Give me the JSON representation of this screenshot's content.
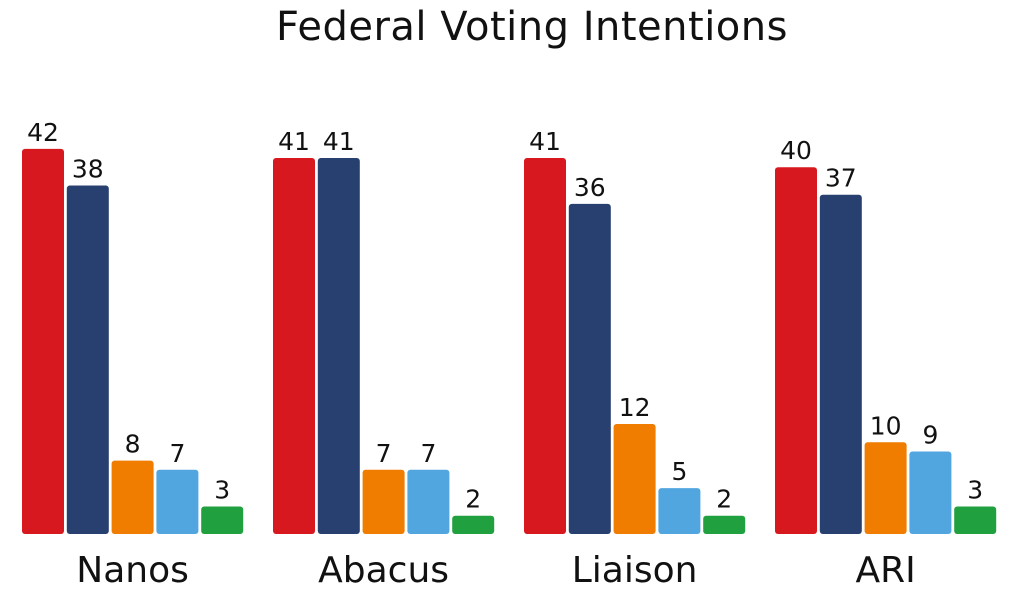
{
  "chart_data": {
    "type": "bar",
    "title": "Federal Voting Intentions",
    "categories": [
      "Nanos",
      "Abacus",
      "Liaison",
      "ARI"
    ],
    "series": [
      {
        "color": "#d7191f",
        "values": [
          42,
          41,
          41,
          40
        ]
      },
      {
        "color": "#27406f",
        "values": [
          38,
          41,
          36,
          37
        ]
      },
      {
        "color": "#f07c00",
        "values": [
          8,
          7,
          12,
          10
        ]
      },
      {
        "color": "#52a6e0",
        "values": [
          7,
          7,
          5,
          9
        ]
      },
      {
        "color": "#21a040",
        "values": [
          3,
          2,
          2,
          3
        ]
      }
    ],
    "xlabel": "",
    "ylabel": "",
    "ylim": [
      0,
      42
    ],
    "grid": false,
    "legend": "none",
    "data_labels": true
  }
}
